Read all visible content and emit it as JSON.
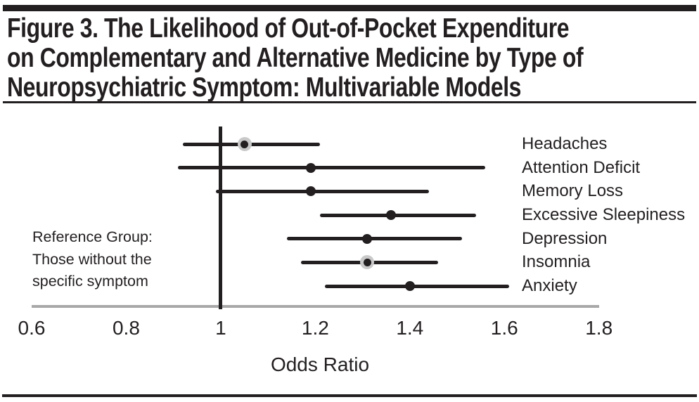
{
  "figure": {
    "title_lines": [
      "Figure 3. The Likelihood of Out-of-Pocket Expenditure",
      "on Complementary and Alternative Medicine by Type of",
      "Neuropsychiatric Symptom: Multivariable Models"
    ]
  },
  "annotation": {
    "lines": [
      "Reference Group:",
      "Those without the",
      "specific symptom"
    ]
  },
  "chart_data": {
    "type": "scatter",
    "subtype": "forest_plot",
    "title": "Figure 3. The Likelihood of Out-of-Pocket Expenditure on Complementary and Alternative Medicine by Type of Neuropsychiatric Symptom: Multivariable Models",
    "xlabel": "Odds Ratio",
    "xlim": [
      0.6,
      1.8
    ],
    "x_ticks": [
      0.6,
      0.8,
      1,
      1.2,
      1.4,
      1.6,
      1.8
    ],
    "x_tick_labels": [
      "0.6",
      "0.8",
      "1",
      "1.2",
      "1.4",
      "1.6",
      "1.8"
    ],
    "reference_line": 1,
    "reference_note": "Reference Group: Those without the specific symptom",
    "grid": false,
    "labels_position": "right",
    "rows": [
      {
        "label": "Headaches",
        "odds_ratio": 1.05,
        "ci_low": 0.92,
        "ci_high": 1.21,
        "marker": "shaded"
      },
      {
        "label": "Attention Deficit",
        "odds_ratio": 1.19,
        "ci_low": 0.91,
        "ci_high": 1.56,
        "marker": "solid"
      },
      {
        "label": "Memory Loss",
        "odds_ratio": 1.19,
        "ci_low": 0.99,
        "ci_high": 1.44,
        "marker": "solid"
      },
      {
        "label": "Excessive Sleepiness",
        "odds_ratio": 1.36,
        "ci_low": 1.21,
        "ci_high": 1.54,
        "marker": "solid"
      },
      {
        "label": "Depression",
        "odds_ratio": 1.31,
        "ci_low": 1.14,
        "ci_high": 1.51,
        "marker": "solid"
      },
      {
        "label": "Insomnia",
        "odds_ratio": 1.31,
        "ci_low": 1.17,
        "ci_high": 1.46,
        "marker": "shaded"
      },
      {
        "label": "Anxiety",
        "odds_ratio": 1.4,
        "ci_low": 1.22,
        "ci_high": 1.61,
        "marker": "solid"
      }
    ]
  },
  "colors": {
    "ink": "#231f20",
    "axis_grey": "#a8a8a8",
    "halo_grey": "#c9c9c9",
    "background": "#ffffff"
  }
}
